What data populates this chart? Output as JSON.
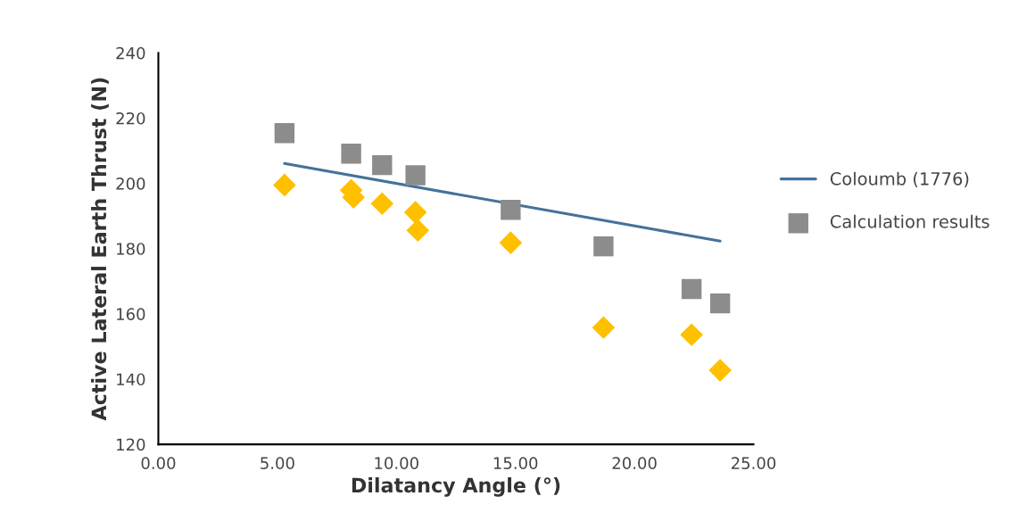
{
  "chart_data": {
    "type": "scatter",
    "xlabel": "Dilatancy Angle (°)",
    "ylabel": "Active Lateral Earth Thrust (N)",
    "xlim": [
      0,
      25
    ],
    "ylim": [
      120,
      240
    ],
    "xticks": [
      {
        "value": 0,
        "label": "0.00"
      },
      {
        "value": 5,
        "label": "5.00"
      },
      {
        "value": 10,
        "label": "10.00"
      },
      {
        "value": 15,
        "label": "15.00"
      },
      {
        "value": 20,
        "label": "20.00"
      },
      {
        "value": 25,
        "label": "25.00"
      }
    ],
    "yticks": [
      120,
      140,
      160,
      180,
      200,
      220,
      240
    ],
    "grid": false,
    "legend": "right",
    "series": [
      {
        "name": "Coloumb (1776)",
        "type": "line",
        "color": "#44729a",
        "marker": "none",
        "line_style": "solid",
        "x": [
          5.3,
          23.6
        ],
        "values": [
          206.1,
          182.3
        ]
      },
      {
        "name": "Calculation results",
        "color": "#8c8c8c",
        "marker": "square",
        "x": [
          5.3,
          8.1,
          9.4,
          10.8,
          14.8,
          18.7,
          22.4,
          23.6
        ],
        "values": [
          215.4,
          209.1,
          205.6,
          202.5,
          191.9,
          180.7,
          167.6,
          163.2
        ]
      },
      {
        "color": "#ffc000",
        "marker": "diamond",
        "x": [
          5.3,
          8.1,
          8.2,
          9.4,
          10.8,
          10.9,
          14.8,
          18.7,
          22.4,
          23.6
        ],
        "values": [
          199.5,
          197.9,
          195.7,
          193.8,
          191.1,
          185.6,
          181.8,
          155.8,
          153.6,
          142.7
        ]
      }
    ]
  }
}
